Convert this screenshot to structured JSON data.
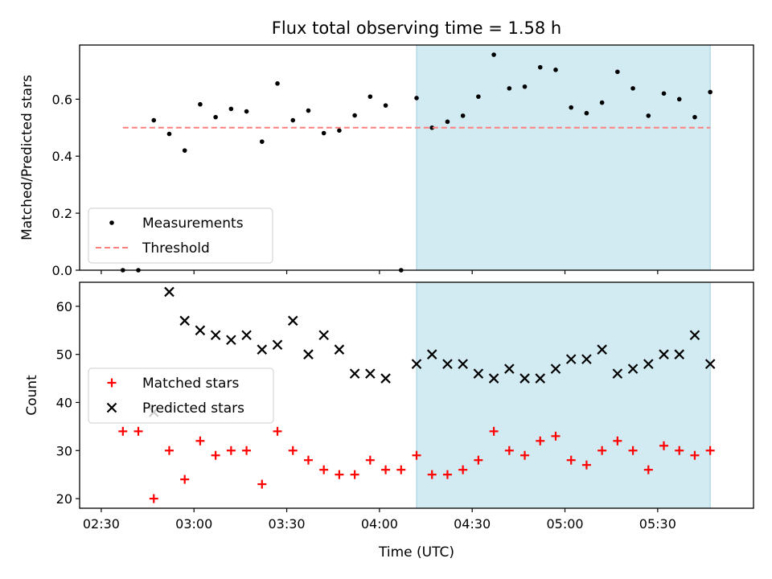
{
  "chart_data": {
    "title": "Flux total observing time = 1.58 h",
    "xlabel": "Time (UTC)",
    "x_tick_labels": [
      "02:30",
      "03:00",
      "03:30",
      "04:00",
      "04:30",
      "05:00",
      "05:30"
    ],
    "x_tick_times": [
      "02:30",
      "03:00",
      "03:30",
      "04:00",
      "04:30",
      "05:00",
      "05:30"
    ],
    "colors": {
      "measurements": "#000000",
      "threshold": "#ff7f7f",
      "matched": "#ff0000",
      "predicted": "#000000",
      "span": "#add8e6"
    },
    "panels": [
      {
        "type": "scatter",
        "ylabel": "Matched/Predicted stars",
        "ylim": [
          0,
          0.79
        ],
        "y_ticks": [
          0.0,
          0.2,
          0.4,
          0.6
        ],
        "y_tick_labels": [
          "0.0",
          "0.2",
          "0.4",
          "0.6"
        ],
        "shaded_span": [
          "04:12",
          "05:47"
        ],
        "legend": {
          "position": "lower-left",
          "entries": [
            "Measurements",
            "Threshold"
          ]
        },
        "series": [
          {
            "name": "Measurements",
            "marker": "dot",
            "x": [
              "02:37",
              "02:42",
              "02:47",
              "02:52",
              "02:57",
              "03:02",
              "03:07",
              "03:12",
              "03:17",
              "03:22",
              "03:27",
              "03:32",
              "03:37",
              "03:42",
              "03:47",
              "03:52",
              "03:57",
              "04:02",
              "04:07",
              "04:12",
              "04:17",
              "04:22",
              "04:27",
              "04:32",
              "04:37",
              "04:42",
              "04:47",
              "04:52",
              "04:57",
              "05:02",
              "05:07",
              "05:12",
              "05:17",
              "05:22",
              "05:27",
              "05:32",
              "05:37",
              "05:42",
              "05:47"
            ],
            "y": [
              0.0,
              0.0,
              0.526,
              0.478,
              0.42,
              0.582,
              0.537,
              0.566,
              0.557,
              0.451,
              0.655,
              0.526,
              0.56,
              0.481,
              0.49,
              0.543,
              0.609,
              0.578,
              0.0,
              0.604,
              0.5,
              0.521,
              0.542,
              0.609,
              0.756,
              0.638,
              0.644,
              0.712,
              0.703,
              0.571,
              0.551,
              0.588,
              0.696,
              0.638,
              0.542,
              0.62,
              0.6,
              0.537,
              0.625
            ]
          },
          {
            "name": "Threshold",
            "type": "line",
            "style": "dashed",
            "x": [
              "02:37",
              "05:47"
            ],
            "y": [
              0.5,
              0.5
            ]
          }
        ]
      },
      {
        "type": "scatter",
        "ylabel": "Count",
        "ylim": [
          18,
          65
        ],
        "y_ticks": [
          20,
          30,
          40,
          50,
          60
        ],
        "y_tick_labels": [
          "20",
          "30",
          "40",
          "50",
          "60"
        ],
        "shaded_span": [
          "04:12",
          "05:47"
        ],
        "legend": {
          "position": "center-left",
          "entries": [
            "Matched stars",
            "Predicted stars"
          ]
        },
        "series": [
          {
            "name": "Matched stars",
            "marker": "plus",
            "x": [
              "02:37",
              "02:42",
              "02:47",
              "02:52",
              "02:57",
              "03:02",
              "03:07",
              "03:12",
              "03:17",
              "03:22",
              "03:27",
              "03:32",
              "03:37",
              "03:42",
              "03:47",
              "03:52",
              "03:57",
              "04:02",
              "04:07",
              "04:12",
              "04:17",
              "04:22",
              "04:27",
              "04:32",
              "04:37",
              "04:42",
              "04:47",
              "04:52",
              "04:57",
              "05:02",
              "05:07",
              "05:12",
              "05:17",
              "05:22",
              "05:27",
              "05:32",
              "05:37",
              "05:42",
              "05:47"
            ],
            "y": [
              34,
              34,
              20,
              30,
              24,
              32,
              29,
              30,
              30,
              23,
              34,
              30,
              28,
              26,
              25,
              25,
              28,
              26,
              26,
              29,
              25,
              25,
              26,
              28,
              34,
              30,
              29,
              32,
              33,
              28,
              27,
              30,
              32,
              30,
              26,
              31,
              30,
              29,
              30
            ]
          },
          {
            "name": "Predicted stars",
            "marker": "x",
            "x": [
              "02:47",
              "02:52",
              "02:57",
              "03:02",
              "03:07",
              "03:12",
              "03:17",
              "03:22",
              "03:27",
              "03:32",
              "03:37",
              "03:42",
              "03:47",
              "03:52",
              "03:57",
              "04:02",
              "04:12",
              "04:17",
              "04:22",
              "04:27",
              "04:32",
              "04:37",
              "04:42",
              "04:47",
              "04:52",
              "04:57",
              "05:02",
              "05:07",
              "05:12",
              "05:17",
              "05:22",
              "05:27",
              "05:32",
              "05:37",
              "05:42",
              "05:47"
            ],
            "y": [
              38,
              63,
              57,
              55,
              54,
              53,
              54,
              51,
              52,
              57,
              50,
              54,
              51,
              46,
              46,
              45,
              48,
              50,
              48,
              48,
              46,
              45,
              47,
              45,
              45,
              47,
              49,
              49,
              51,
              46,
              47,
              48,
              50,
              50,
              54,
              48
            ]
          }
        ]
      }
    ]
  }
}
